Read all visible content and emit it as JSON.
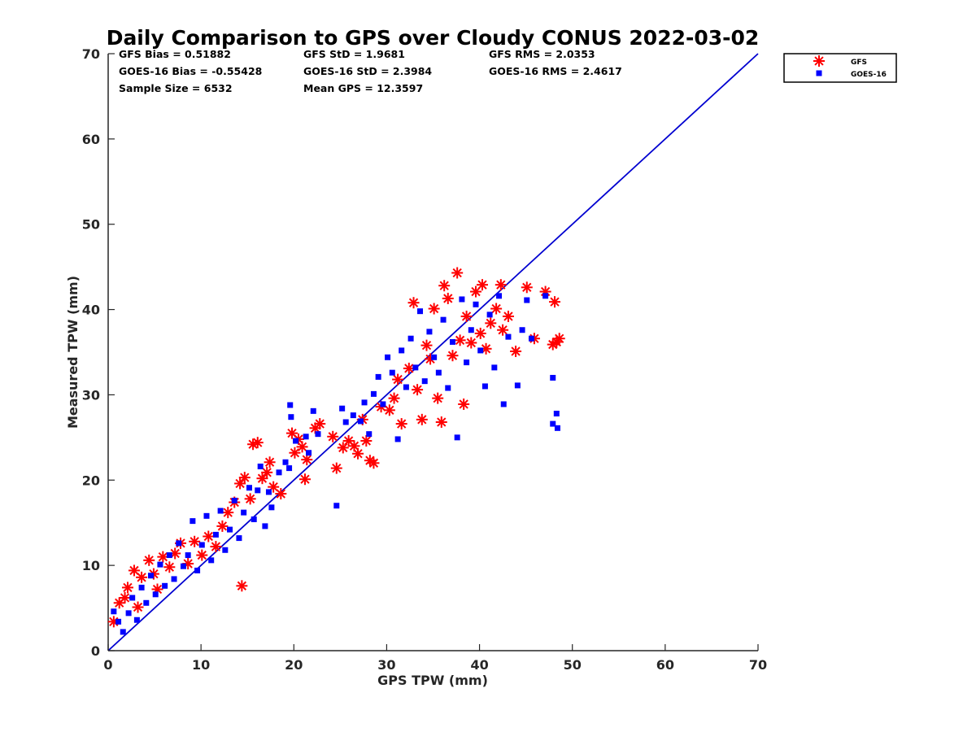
{
  "chart_data": {
    "type": "scatter",
    "title": "Daily Comparison to GPS over Cloudy CONUS 2022-03-02",
    "xlabel": "GPS TPW (mm)",
    "ylabel": "Measured TPW (mm)",
    "xlim": [
      0,
      70
    ],
    "ylim": [
      0,
      70
    ],
    "xticks": [
      "0",
      "10",
      "20",
      "30",
      "40",
      "50",
      "60",
      "70"
    ],
    "yticks": [
      "0",
      "10",
      "20",
      "30",
      "40",
      "50",
      "60",
      "70"
    ],
    "grid": false,
    "legend_position": "outside top-right",
    "reference_line": {
      "from": [
        0,
        0
      ],
      "to": [
        70,
        70
      ],
      "color": "#0000d0"
    },
    "stats": [
      "GFS Bias = 0.51882",
      "GFS StD = 1.9681",
      "GFS RMS = 2.0353",
      "GOES-16 Bias = -0.55428",
      "GOES-16 StD = 2.3984",
      "GOES-16 RMS = 2.4617",
      "Sample Size = 6532",
      "Mean GPS = 12.3597"
    ],
    "series": [
      {
        "name": "GFS",
        "marker": "asterisk",
        "color": "#ff0000",
        "points": [
          [
            0.6,
            3.4
          ],
          [
            1.2,
            5.6
          ],
          [
            1.8,
            6.2
          ],
          [
            2.1,
            7.4
          ],
          [
            2.8,
            9.4
          ],
          [
            3.2,
            5.1
          ],
          [
            3.6,
            8.6
          ],
          [
            4.4,
            10.6
          ],
          [
            4.9,
            9.0
          ],
          [
            5.3,
            7.2
          ],
          [
            5.9,
            11.0
          ],
          [
            6.6,
            9.8
          ],
          [
            7.2,
            11.4
          ],
          [
            7.8,
            12.6
          ],
          [
            8.6,
            10.2
          ],
          [
            9.3,
            12.8
          ],
          [
            10.1,
            11.2
          ],
          [
            10.8,
            13.4
          ],
          [
            11.6,
            12.2
          ],
          [
            12.3,
            14.6
          ],
          [
            12.9,
            16.2
          ],
          [
            13.6,
            17.4
          ],
          [
            14.2,
            19.6
          ],
          [
            14.4,
            7.6
          ],
          [
            14.7,
            20.3
          ],
          [
            15.3,
            17.8
          ],
          [
            15.6,
            24.2
          ],
          [
            16.1,
            24.4
          ],
          [
            16.6,
            20.2
          ],
          [
            17.1,
            20.9
          ],
          [
            17.4,
            22.1
          ],
          [
            17.8,
            19.2
          ],
          [
            18.6,
            18.4
          ],
          [
            19.8,
            25.5
          ],
          [
            20.1,
            23.2
          ],
          [
            20.5,
            24.8
          ],
          [
            20.9,
            23.9
          ],
          [
            21.2,
            20.1
          ],
          [
            21.4,
            22.4
          ],
          [
            22.3,
            26.1
          ],
          [
            22.8,
            26.6
          ],
          [
            24.2,
            25.1
          ],
          [
            24.6,
            21.4
          ],
          [
            25.3,
            23.8
          ],
          [
            25.9,
            24.6
          ],
          [
            26.5,
            24.0
          ],
          [
            26.9,
            23.1
          ],
          [
            27.4,
            27.1
          ],
          [
            27.8,
            24.6
          ],
          [
            28.2,
            22.3
          ],
          [
            28.6,
            22.0
          ],
          [
            29.4,
            28.6
          ],
          [
            30.3,
            28.2
          ],
          [
            30.8,
            29.6
          ],
          [
            31.2,
            31.8
          ],
          [
            31.6,
            26.6
          ],
          [
            32.4,
            33.1
          ],
          [
            32.9,
            40.8
          ],
          [
            33.3,
            30.6
          ],
          [
            33.8,
            27.1
          ],
          [
            34.3,
            35.8
          ],
          [
            34.7,
            34.2
          ],
          [
            35.1,
            40.1
          ],
          [
            35.5,
            29.6
          ],
          [
            35.9,
            26.8
          ],
          [
            36.2,
            42.8
          ],
          [
            36.6,
            41.3
          ],
          [
            37.1,
            34.6
          ],
          [
            37.6,
            44.3
          ],
          [
            37.9,
            36.4
          ],
          [
            38.3,
            28.9
          ],
          [
            38.6,
            39.2
          ],
          [
            39.1,
            36.1
          ],
          [
            39.6,
            42.1
          ],
          [
            40.1,
            37.2
          ],
          [
            40.3,
            42.9
          ],
          [
            40.7,
            35.4
          ],
          [
            41.2,
            38.4
          ],
          [
            41.8,
            40.1
          ],
          [
            42.3,
            42.9
          ],
          [
            42.5,
            37.6
          ],
          [
            43.1,
            39.2
          ],
          [
            43.9,
            35.1
          ],
          [
            45.1,
            42.6
          ],
          [
            45.9,
            36.6
          ],
          [
            47.1,
            42.1
          ],
          [
            47.9,
            35.9
          ],
          [
            48.1,
            40.9
          ],
          [
            48.3,
            36.2
          ],
          [
            48.6,
            36.6
          ]
        ]
      },
      {
        "name": "GOES-16",
        "marker": "square",
        "color": "#0000ff",
        "points": [
          [
            0.6,
            4.6
          ],
          [
            1.1,
            3.4
          ],
          [
            1.6,
            2.2
          ],
          [
            2.2,
            4.4
          ],
          [
            2.6,
            6.2
          ],
          [
            3.1,
            3.6
          ],
          [
            3.6,
            7.4
          ],
          [
            4.1,
            5.6
          ],
          [
            4.6,
            8.8
          ],
          [
            5.1,
            6.6
          ],
          [
            5.6,
            10.1
          ],
          [
            6.1,
            7.6
          ],
          [
            6.6,
            11.2
          ],
          [
            7.1,
            8.4
          ],
          [
            7.6,
            12.6
          ],
          [
            8.1,
            9.9
          ],
          [
            8.6,
            11.2
          ],
          [
            9.1,
            15.2
          ],
          [
            9.6,
            9.4
          ],
          [
            10.1,
            12.4
          ],
          [
            10.6,
            15.8
          ],
          [
            11.1,
            10.6
          ],
          [
            11.6,
            13.6
          ],
          [
            12.1,
            16.4
          ],
          [
            12.6,
            11.8
          ],
          [
            13.1,
            14.2
          ],
          [
            13.6,
            17.6
          ],
          [
            14.1,
            13.2
          ],
          [
            14.6,
            16.2
          ],
          [
            15.2,
            19.1
          ],
          [
            15.7,
            15.4
          ],
          [
            16.1,
            18.8
          ],
          [
            16.4,
            21.6
          ],
          [
            16.9,
            14.6
          ],
          [
            17.3,
            18.6
          ],
          [
            17.6,
            16.8
          ],
          [
            18.4,
            20.9
          ],
          [
            19.1,
            22.1
          ],
          [
            19.5,
            21.4
          ],
          [
            19.6,
            28.8
          ],
          [
            19.7,
            27.4
          ],
          [
            20.2,
            24.6
          ],
          [
            21.3,
            25.1
          ],
          [
            21.6,
            23.2
          ],
          [
            22.1,
            28.1
          ],
          [
            22.6,
            25.4
          ],
          [
            24.6,
            17.0
          ],
          [
            25.2,
            28.4
          ],
          [
            25.6,
            26.8
          ],
          [
            26.4,
            27.6
          ],
          [
            27.2,
            26.9
          ],
          [
            27.6,
            29.1
          ],
          [
            28.1,
            25.4
          ],
          [
            28.6,
            30.1
          ],
          [
            29.1,
            32.1
          ],
          [
            29.6,
            28.9
          ],
          [
            30.1,
            34.4
          ],
          [
            30.6,
            32.6
          ],
          [
            31.2,
            24.8
          ],
          [
            31.6,
            35.2
          ],
          [
            32.1,
            30.9
          ],
          [
            32.6,
            36.6
          ],
          [
            33.1,
            33.2
          ],
          [
            33.6,
            39.8
          ],
          [
            34.1,
            31.6
          ],
          [
            34.6,
            37.4
          ],
          [
            35.1,
            34.4
          ],
          [
            35.6,
            32.6
          ],
          [
            36.1,
            38.8
          ],
          [
            36.6,
            30.8
          ],
          [
            37.1,
            36.2
          ],
          [
            37.6,
            25.0
          ],
          [
            38.1,
            41.2
          ],
          [
            38.6,
            33.8
          ],
          [
            39.1,
            37.6
          ],
          [
            39.6,
            40.6
          ],
          [
            40.1,
            35.2
          ],
          [
            40.6,
            31.0
          ],
          [
            41.1,
            39.4
          ],
          [
            41.6,
            33.2
          ],
          [
            42.1,
            41.6
          ],
          [
            42.6,
            28.9
          ],
          [
            43.1,
            36.8
          ],
          [
            44.1,
            31.1
          ],
          [
            44.6,
            37.6
          ],
          [
            45.1,
            41.1
          ],
          [
            45.6,
            36.6
          ],
          [
            47.1,
            41.6
          ],
          [
            47.9,
            26.6
          ],
          [
            48.3,
            27.8
          ],
          [
            48.4,
            26.1
          ],
          [
            47.9,
            32.0
          ]
        ]
      }
    ]
  }
}
